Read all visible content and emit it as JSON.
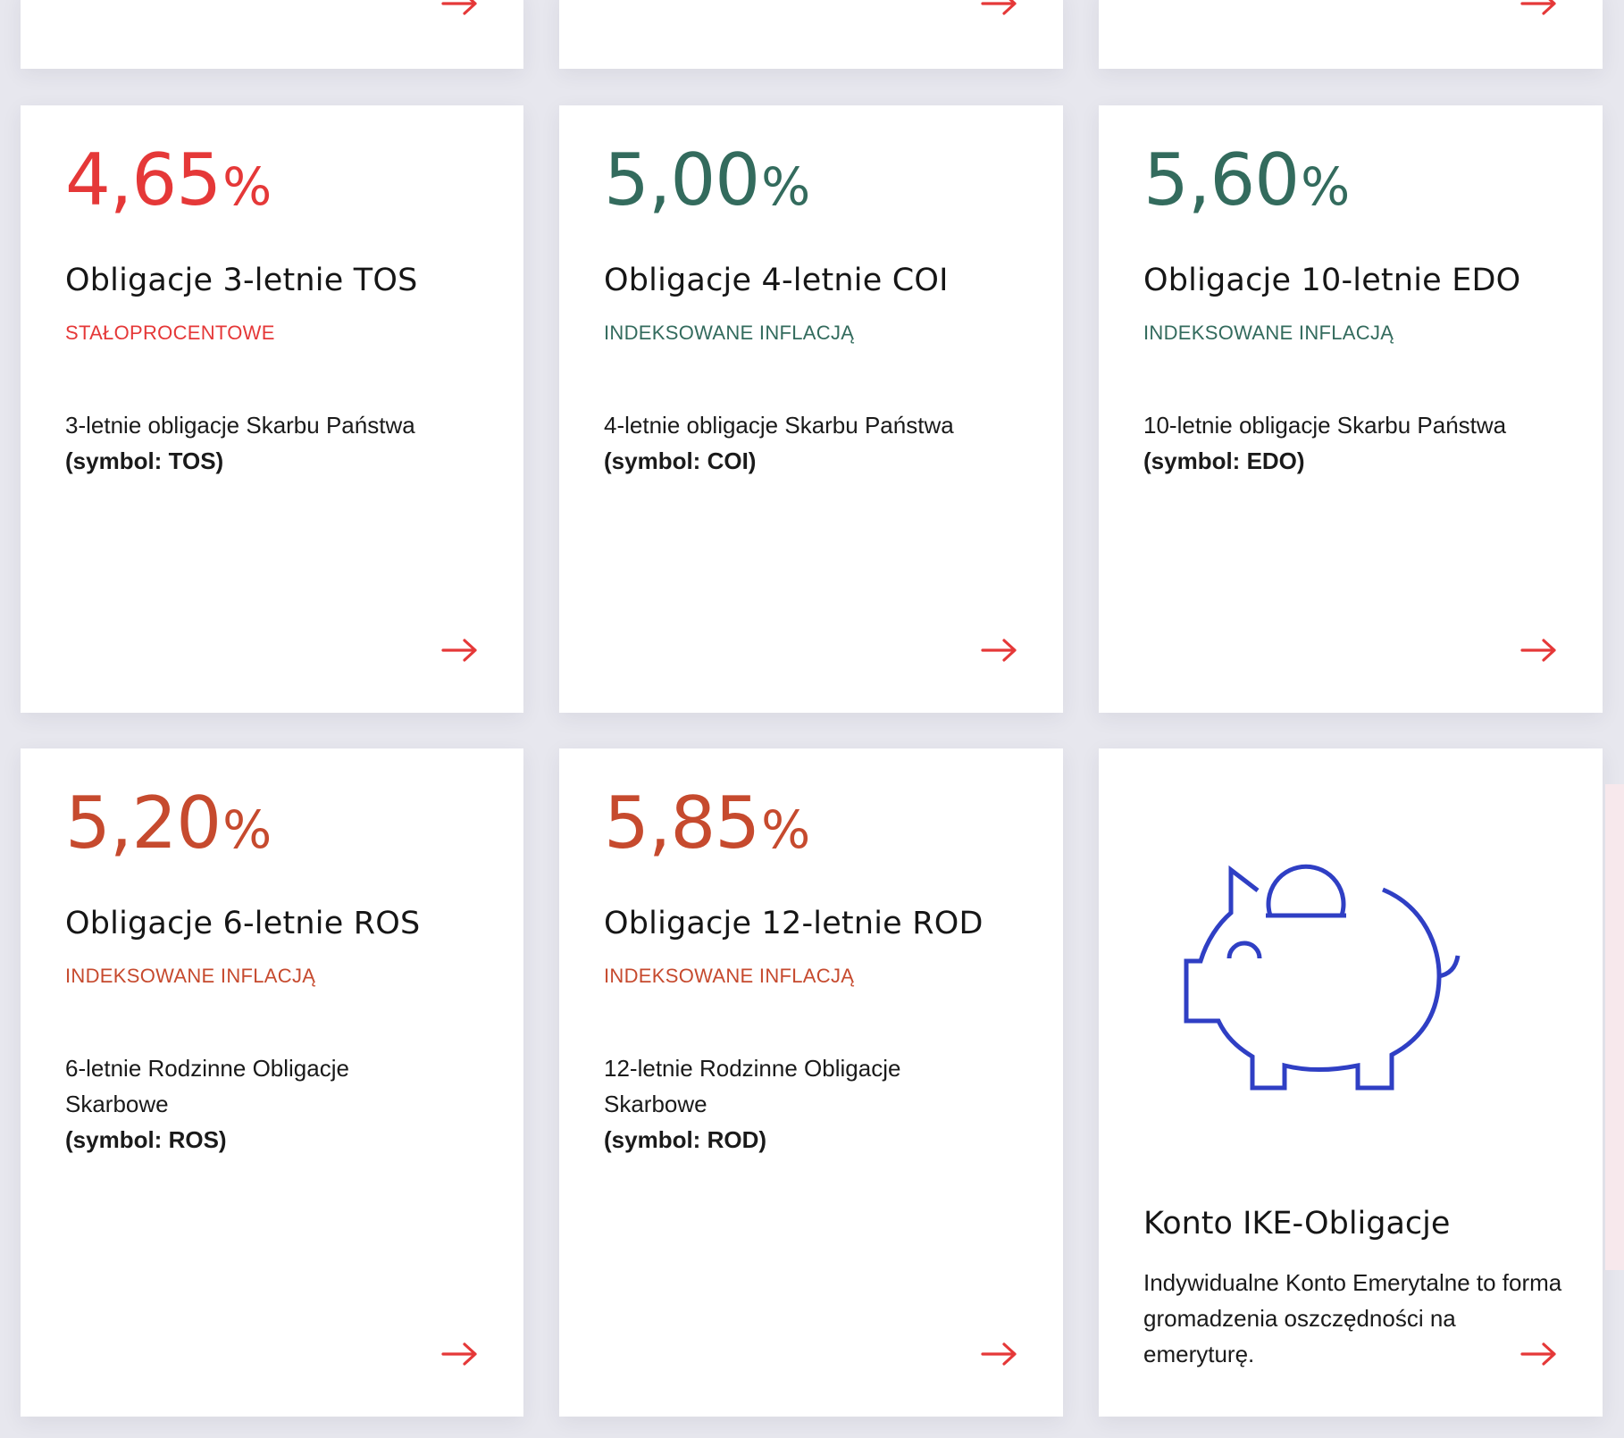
{
  "cards_top_row": [
    {
      "arrow_icon": "arrow-right-icon"
    },
    {
      "arrow_icon": "arrow-right-icon"
    },
    {
      "arrow_icon": "arrow-right-icon"
    }
  ],
  "bonds": [
    {
      "rate": "4,65",
      "percent": "%",
      "title": "Obligacje 3-letnie TOS",
      "type": "STAŁOPROCENTOWE",
      "description": "3-letnie obligacje Skarbu Państwa",
      "symbol": "(symbol: TOS)",
      "color": "#e53838"
    },
    {
      "rate": "5,00",
      "percent": "%",
      "title": "Obligacje 4-letnie COI",
      "type": "INDEKSOWANE INFLACJĄ",
      "description": "4-letnie obligacje Skarbu Państwa",
      "symbol": "(symbol: COI)",
      "color": "#336b5d"
    },
    {
      "rate": "5,60",
      "percent": "%",
      "title": "Obligacje 10-letnie EDO",
      "type": "INDEKSOWANE INFLACJĄ",
      "description": "10-letnie obligacje Skarbu Państwa",
      "symbol": "(symbol: EDO)",
      "color": "#336b5d"
    },
    {
      "rate": "5,20",
      "percent": "%",
      "title": "Obligacje 6-letnie ROS",
      "type": "INDEKSOWANE INFLACJĄ",
      "description": "6-letnie Rodzinne Obligacje Skarbowe",
      "symbol": "(symbol: ROS)",
      "color": "#c64a2e"
    },
    {
      "rate": "5,85",
      "percent": "%",
      "title": "Obligacje 12-letnie ROD",
      "type": "INDEKSOWANE INFLACJĄ",
      "description": "12-letnie Rodzinne Obligacje Skarbowe",
      "symbol": "(symbol: ROD)",
      "color": "#c64a2e"
    }
  ],
  "ike": {
    "icon": "piggy-bank-icon",
    "title": "Konto IKE-Obligacje",
    "description": "Indywidualne Konto Emerytalne to forma gromadzenia oszczędności na emeryturę.",
    "icon_color": "#2f3fc4"
  },
  "arrow_color": "#e53838"
}
